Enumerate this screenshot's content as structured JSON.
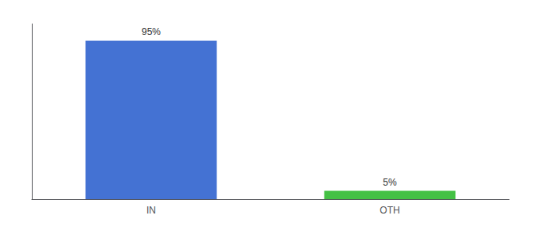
{
  "chart_data": {
    "type": "bar",
    "categories": [
      "IN",
      "OTH"
    ],
    "values": [
      95,
      5
    ],
    "value_labels": [
      "95%",
      "5%"
    ],
    "colors": [
      "#4472d3",
      "#44c144"
    ],
    "ylim": [
      0,
      105
    ],
    "data_labels": true,
    "tick_labels": "x",
    "grid": false
  }
}
